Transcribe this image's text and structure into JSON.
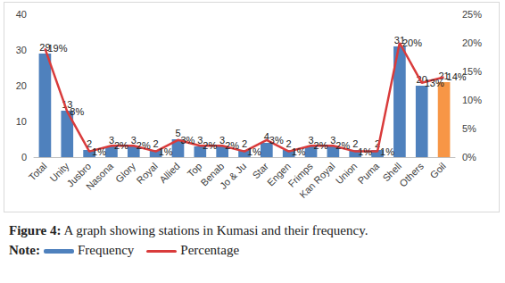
{
  "chart_data": {
    "type": "bar",
    "title": "Figure 4: A graph showing stations in Kumasi and their frequency.",
    "annotations": [
      "Note:"
    ],
    "categories": [
      "Total",
      "Unity",
      "Jusbro",
      "Nasona",
      "Glory",
      "Royal",
      "Allied",
      "Top",
      "Benab",
      "Jo & Ju",
      "Star",
      "Engen",
      "Frimps",
      "Kan Royal",
      "Union",
      "Puma",
      "Shell",
      "Others",
      "Goil"
    ],
    "series": [
      {
        "name": "Frequency",
        "type": "bar",
        "color": "#4f81bd",
        "colors": [
          "#4f81bd",
          "#4f81bd",
          "#4f81bd",
          "#4f81bd",
          "#4f81bd",
          "#4f81bd",
          "#4f81bd",
          "#4f81bd",
          "#4f81bd",
          "#4f81bd",
          "#4f81bd",
          "#4f81bd",
          "#4f81bd",
          "#4f81bd",
          "#4f81bd",
          "#4f81bd",
          "#4f81bd",
          "#4f81bd",
          "#f79646"
        ],
        "values": [
          29,
          13,
          2,
          3,
          3,
          2,
          5,
          3,
          3,
          2,
          4,
          2,
          3,
          3,
          2,
          2,
          31,
          20,
          21
        ]
      },
      {
        "name": "Percentage",
        "type": "line",
        "axis": "y2",
        "color": "#d93b3b",
        "values": [
          19,
          8,
          1,
          2,
          2,
          1,
          3,
          2,
          2,
          1,
          3,
          1,
          2,
          2,
          1,
          1,
          20,
          13,
          14
        ],
        "value_labels": [
          "19%",
          "8%",
          "1%",
          "2%",
          "2%",
          "1%",
          "3%",
          "2%",
          "2%",
          "1%",
          "3%",
          "1%",
          "2%",
          "2%",
          "1%",
          "1%",
          "20%",
          "13%",
          "14%"
        ]
      }
    ],
    "ylim": [
      0,
      40
    ],
    "yticks": [
      0,
      10,
      20,
      30,
      40
    ],
    "y2lim": [
      0,
      25
    ],
    "y2ticks": [
      {
        "value": 0,
        "label": "0%"
      },
      {
        "value": 5,
        "label": "5%"
      },
      {
        "value": 10,
        "label": "10%"
      },
      {
        "value": 15,
        "label": "15%"
      },
      {
        "value": 20,
        "label": "20%"
      },
      {
        "value": 25,
        "label": "25%"
      }
    ],
    "data_labels": true,
    "legend": "bottom",
    "grid": false
  }
}
